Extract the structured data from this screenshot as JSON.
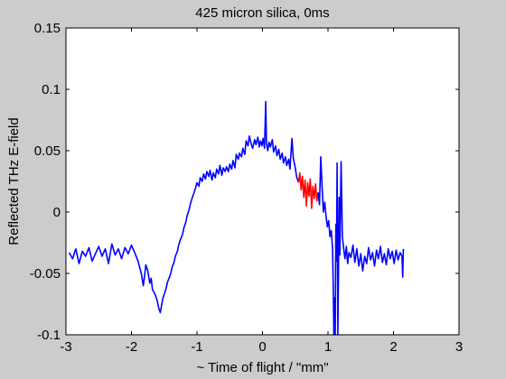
{
  "chart_data": {
    "type": "line",
    "title": "425 micron silica, 0ms",
    "xlabel": "~ Time of flight / \"mm\"",
    "ylabel": "Reflected THz E-field",
    "xlim": [
      -3,
      3
    ],
    "ylim": [
      -0.1,
      0.15
    ],
    "xticks": [
      -3,
      -2,
      -1,
      0,
      1,
      2,
      3
    ],
    "xtick_labels": [
      "-3",
      "-2",
      "-1",
      "0",
      "1",
      "2",
      "3"
    ],
    "yticks": [
      -0.1,
      -0.05,
      0,
      0.05,
      0.1,
      0.15
    ],
    "ytick_labels": [
      "-0.1",
      "-0.05",
      "0",
      "0.05",
      "0.1",
      "0.15"
    ],
    "grid": false,
    "background_color": "#cccccc",
    "plot_area_color": "#ffffff",
    "series": [
      {
        "color": "#0000ff",
        "points": [
          [
            -2.95,
            -0.033
          ],
          [
            -2.9,
            -0.038
          ],
          [
            -2.85,
            -0.03
          ],
          [
            -2.8,
            -0.042
          ],
          [
            -2.75,
            -0.032
          ],
          [
            -2.7,
            -0.036
          ],
          [
            -2.65,
            -0.029
          ],
          [
            -2.6,
            -0.04
          ],
          [
            -2.55,
            -0.034
          ],
          [
            -2.5,
            -0.028
          ],
          [
            -2.45,
            -0.036
          ],
          [
            -2.4,
            -0.03
          ],
          [
            -2.35,
            -0.042
          ],
          [
            -2.3,
            -0.026
          ],
          [
            -2.25,
            -0.035
          ],
          [
            -2.2,
            -0.03
          ],
          [
            -2.15,
            -0.038
          ],
          [
            -2.1,
            -0.029
          ],
          [
            -2.05,
            -0.034
          ],
          [
            -2.0,
            -0.027
          ],
          [
            -1.95,
            -0.033
          ],
          [
            -1.9,
            -0.04
          ],
          [
            -1.85,
            -0.05
          ],
          [
            -1.82,
            -0.06
          ],
          [
            -1.8,
            -0.052
          ],
          [
            -1.78,
            -0.043
          ],
          [
            -1.75,
            -0.048
          ],
          [
            -1.72,
            -0.058
          ],
          [
            -1.7,
            -0.054
          ],
          [
            -1.68,
            -0.063
          ],
          [
            -1.65,
            -0.066
          ],
          [
            -1.62,
            -0.07
          ],
          [
            -1.6,
            -0.074
          ],
          [
            -1.58,
            -0.079
          ],
          [
            -1.56,
            -0.082
          ],
          [
            -1.54,
            -0.076
          ],
          [
            -1.52,
            -0.07
          ],
          [
            -1.5,
            -0.067
          ],
          [
            -1.47,
            -0.062
          ],
          [
            -1.45,
            -0.057
          ],
          [
            -1.42,
            -0.053
          ],
          [
            -1.4,
            -0.05
          ],
          [
            -1.38,
            -0.045
          ],
          [
            -1.35,
            -0.041
          ],
          [
            -1.33,
            -0.036
          ],
          [
            -1.3,
            -0.032
          ],
          [
            -1.28,
            -0.027
          ],
          [
            -1.25,
            -0.022
          ],
          [
            -1.22,
            -0.018
          ],
          [
            -1.2,
            -0.013
          ],
          [
            -1.17,
            -0.008
          ],
          [
            -1.15,
            -0.003
          ],
          [
            -1.12,
            0.002
          ],
          [
            -1.1,
            0.007
          ],
          [
            -1.07,
            0.012
          ],
          [
            -1.05,
            0.015
          ],
          [
            -1.02,
            0.02
          ],
          [
            -1.0,
            0.024
          ],
          [
            -0.97,
            0.021
          ],
          [
            -0.95,
            0.028
          ],
          [
            -0.92,
            0.025
          ],
          [
            -0.9,
            0.031
          ],
          [
            -0.87,
            0.027
          ],
          [
            -0.85,
            0.033
          ],
          [
            -0.82,
            0.029
          ],
          [
            -0.8,
            0.034
          ],
          [
            -0.77,
            0.026
          ],
          [
            -0.75,
            0.032
          ],
          [
            -0.72,
            0.028
          ],
          [
            -0.7,
            0.035
          ],
          [
            -0.67,
            0.031
          ],
          [
            -0.65,
            0.038
          ],
          [
            -0.62,
            0.03
          ],
          [
            -0.6,
            0.036
          ],
          [
            -0.57,
            0.033
          ],
          [
            -0.55,
            0.037
          ],
          [
            -0.52,
            0.033
          ],
          [
            -0.5,
            0.039
          ],
          [
            -0.47,
            0.035
          ],
          [
            -0.45,
            0.042
          ],
          [
            -0.42,
            0.036
          ],
          [
            -0.4,
            0.047
          ],
          [
            -0.37,
            0.043
          ],
          [
            -0.35,
            0.048
          ],
          [
            -0.32,
            0.045
          ],
          [
            -0.3,
            0.052
          ],
          [
            -0.27,
            0.047
          ],
          [
            -0.25,
            0.058
          ],
          [
            -0.22,
            0.054
          ],
          [
            -0.2,
            0.062
          ],
          [
            -0.17,
            0.055
          ],
          [
            -0.15,
            0.052
          ],
          [
            -0.12,
            0.059
          ],
          [
            -0.1,
            0.055
          ],
          [
            -0.07,
            0.061
          ],
          [
            -0.05,
            0.053
          ],
          [
            -0.03,
            0.058
          ],
          [
            -0.01,
            0.054
          ],
          [
            0.01,
            0.06
          ],
          [
            0.03,
            0.052
          ],
          [
            0.05,
            0.09
          ],
          [
            0.06,
            0.056
          ],
          [
            0.08,
            0.05
          ],
          [
            0.1,
            0.057
          ],
          [
            0.12,
            0.053
          ],
          [
            0.15,
            0.059
          ],
          [
            0.17,
            0.049
          ],
          [
            0.2,
            0.054
          ],
          [
            0.22,
            0.046
          ],
          [
            0.25,
            0.051
          ],
          [
            0.27,
            0.043
          ],
          [
            0.3,
            0.048
          ],
          [
            0.32,
            0.04
          ],
          [
            0.35,
            0.045
          ],
          [
            0.37,
            0.038
          ],
          [
            0.4,
            0.043
          ],
          [
            0.42,
            0.035
          ],
          [
            0.45,
            0.06
          ],
          [
            0.47,
            0.044
          ],
          [
            0.5,
            0.036
          ],
          [
            0.52,
            0.029
          ],
          [
            0.55,
            0.024
          ]
        ]
      },
      {
        "color": "#ff0000",
        "points": [
          [
            0.55,
            0.024
          ],
          [
            0.57,
            0.032
          ],
          [
            0.59,
            0.018
          ],
          [
            0.61,
            0.029
          ],
          [
            0.63,
            0.012
          ],
          [
            0.65,
            0.026
          ],
          [
            0.67,
            0.005
          ],
          [
            0.69,
            0.024
          ],
          [
            0.71,
            0.013
          ],
          [
            0.73,
            0.027
          ],
          [
            0.75,
            0.003
          ],
          [
            0.77,
            0.021
          ],
          [
            0.79,
            0.011
          ],
          [
            0.81,
            0.023
          ],
          [
            0.83,
            0.009
          ],
          [
            0.85,
            0.016
          ]
        ]
      },
      {
        "color": "#0000ff",
        "points": [
          [
            0.85,
            0.016
          ],
          [
            0.87,
            0.006
          ],
          [
            0.89,
            0.045
          ],
          [
            0.91,
            0.02
          ],
          [
            0.93,
            0.0
          ],
          [
            0.95,
            0.008
          ],
          [
            0.97,
            -0.003
          ],
          [
            0.99,
            -0.012
          ],
          [
            1.01,
            -0.007
          ],
          [
            1.03,
            -0.02
          ],
          [
            1.05,
            -0.015
          ],
          [
            1.07,
            -0.03
          ],
          [
            1.08,
            -0.06
          ],
          [
            1.09,
            -0.1
          ],
          [
            1.1,
            -0.07
          ],
          [
            1.11,
            -0.1
          ],
          [
            1.12,
            -0.01
          ],
          [
            1.13,
            -0.04
          ],
          [
            1.14,
            0.04
          ],
          [
            1.15,
            -0.1
          ],
          [
            1.16,
            -0.05
          ],
          [
            1.17,
            0.012
          ],
          [
            1.18,
            -0.035
          ],
          [
            1.2,
            0.041
          ],
          [
            1.22,
            -0.02
          ],
          [
            1.24,
            -0.03
          ],
          [
            1.26,
            -0.038
          ],
          [
            1.28,
            -0.028
          ],
          [
            1.3,
            -0.042
          ],
          [
            1.32,
            -0.033
          ],
          [
            1.35,
            -0.037
          ],
          [
            1.38,
            -0.027
          ],
          [
            1.41,
            -0.041
          ],
          [
            1.44,
            -0.03
          ],
          [
            1.47,
            -0.044
          ],
          [
            1.5,
            -0.034
          ],
          [
            1.53,
            -0.048
          ],
          [
            1.56,
            -0.036
          ],
          [
            1.59,
            -0.042
          ],
          [
            1.62,
            -0.029
          ],
          [
            1.65,
            -0.039
          ],
          [
            1.68,
            -0.033
          ],
          [
            1.71,
            -0.044
          ],
          [
            1.74,
            -0.031
          ],
          [
            1.77,
            -0.038
          ],
          [
            1.8,
            -0.028
          ],
          [
            1.83,
            -0.041
          ],
          [
            1.86,
            -0.034
          ],
          [
            1.89,
            -0.043
          ],
          [
            1.92,
            -0.03
          ],
          [
            1.95,
            -0.038
          ],
          [
            1.98,
            -0.032
          ],
          [
            2.01,
            -0.042
          ],
          [
            2.04,
            -0.031
          ],
          [
            2.07,
            -0.039
          ],
          [
            2.1,
            -0.033
          ],
          [
            2.13,
            -0.036
          ],
          [
            2.14,
            -0.053
          ],
          [
            2.15,
            -0.03
          ]
        ]
      }
    ]
  }
}
